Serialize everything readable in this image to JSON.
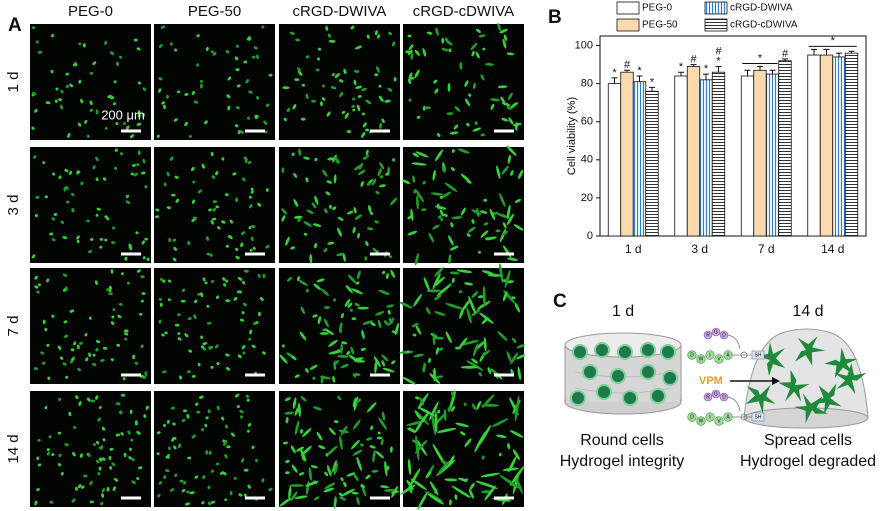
{
  "panel_a": {
    "label": "A",
    "columns": [
      "PEG-0",
      "PEG-50",
      "cRGD-DWIVA",
      "cRGD-cDWIVA"
    ],
    "rows": [
      "1 d",
      "3 d",
      "7 d",
      "14 d"
    ],
    "scale_bar": "200 μm"
  },
  "chart_data": {
    "type": "bar",
    "label": "B",
    "ylabel": "Cell viability (%)",
    "categories": [
      "1 d",
      "3 d",
      "7 d",
      "14 d"
    ],
    "ylim": [
      0,
      105
    ],
    "yticks": [
      0,
      20,
      40,
      60,
      80,
      100
    ],
    "series": [
      {
        "name": "PEG-0",
        "color": "#ffffff",
        "values": [
          80,
          84,
          84,
          95
        ],
        "errors": [
          3,
          2,
          3,
          3
        ],
        "markers": [
          [
            "*"
          ],
          [
            "*"
          ],
          null,
          null
        ]
      },
      {
        "name": "PEG-50",
        "color": "#fad9ae",
        "values": [
          86,
          89,
          87,
          95
        ],
        "errors": [
          1,
          1,
          2,
          3
        ],
        "markers": [
          [
            "#"
          ],
          [
            "#"
          ],
          null,
          null
        ]
      },
      {
        "name": "cRGD-DWIVA",
        "color": "#2f7fd0",
        "pattern": "vertical",
        "values": [
          81,
          82,
          85,
          94
        ],
        "errors": [
          3,
          3,
          2,
          2
        ],
        "markers": [
          [
            "*"
          ],
          [
            "*"
          ],
          null,
          null
        ]
      },
      {
        "name": "cRGD-cDWIVA",
        "color": "#333333",
        "pattern": "horizontal",
        "values": [
          76,
          86,
          92,
          96
        ],
        "errors": [
          2,
          3,
          1,
          1
        ],
        "markers": [
          [
            "*"
          ],
          [
            "*",
            "#"
          ],
          [
            "#"
          ],
          null
        ]
      }
    ],
    "brackets": [
      {
        "category": "7 d",
        "from": "PEG-0",
        "to": "cRGD-DWIVA",
        "label": "*"
      },
      {
        "category": "14 d",
        "from": "PEG-0",
        "to": "cRGD-cDWIVA",
        "label": "*"
      }
    ]
  },
  "panel_c": {
    "label": "C",
    "left_time": "1 d",
    "right_time": "14 d",
    "linker": "VPM",
    "peptides": [
      {
        "loop": [
          "R",
          "G",
          "D"
        ],
        "chain": [
          "D",
          "W",
          "I",
          "V",
          "A"
        ],
        "thiol": "SH"
      },
      {
        "loop": [
          "R",
          "G",
          "D"
        ],
        "chain": [
          "D",
          "W",
          "I",
          "V",
          "A"
        ],
        "thiol": "SH"
      }
    ],
    "left_caption": [
      "Round cells",
      "Hydrogel integrity"
    ],
    "right_caption": [
      "Spread cells",
      "Hydrogel degraded"
    ]
  }
}
